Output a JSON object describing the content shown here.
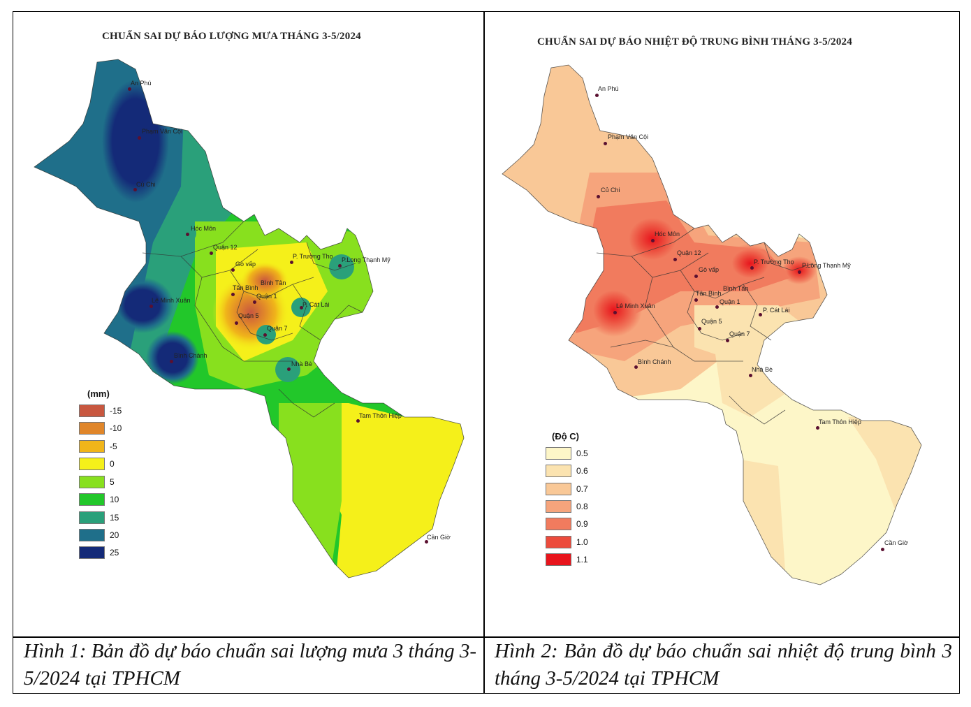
{
  "map_rain": {
    "title": "CHUẨN SAI DỰ BÁO LƯỢNG MƯA THÁNG 3-5/2024",
    "legend_title": "(mm)",
    "legend": [
      {
        "label": "-15",
        "color": "#c8573f"
      },
      {
        "label": "-10",
        "color": "#e0862a"
      },
      {
        "label": "-5",
        "color": "#f0b51a"
      },
      {
        "label": "0",
        "color": "#f5f01a"
      },
      {
        "label": "5",
        "color": "#88e01e"
      },
      {
        "label": "10",
        "color": "#22c72a"
      },
      {
        "label": "15",
        "color": "#2aa07a"
      },
      {
        "label": "20",
        "color": "#1f6f8a"
      },
      {
        "label": "25",
        "color": "#142a78"
      }
    ],
    "places": [
      "An Phú",
      "Phạm Văn Cội",
      "Củ Chi",
      "Hóc Môn",
      "Quận 12",
      "Gò vấp",
      "P. Trường Thọ",
      "P.Long Thạnh Mỹ",
      "Bình Tân",
      "Tân Bình",
      "Quận 1",
      "Lê Minh Xuân",
      "P. Cát Lái",
      "Quận 5",
      "Quận 7",
      "Bình Chánh",
      "Nhà Bè",
      "Tam Thôn Hiệp",
      "Cần Giờ"
    ]
  },
  "map_temp": {
    "title": "CHUẨN SAI DỰ BÁO NHIỆT ĐỘ TRUNG BÌNH THÁNG 3-5/2024",
    "legend_title": "(Độ C)",
    "legend": [
      {
        "label": "0.5",
        "color": "#fdf6c8"
      },
      {
        "label": "0.6",
        "color": "#fbe3b0"
      },
      {
        "label": "0.7",
        "color": "#f9c897"
      },
      {
        "label": "0.8",
        "color": "#f6a47c"
      },
      {
        "label": "0.9",
        "color": "#f17b5e"
      },
      {
        "label": "1.0",
        "color": "#ec4b3c"
      },
      {
        "label": "1.1",
        "color": "#e8141c"
      }
    ],
    "places": [
      "An Phú",
      "Phạm Văn Cội",
      "Củ Chi",
      "Hóc Môn",
      "Quận 12",
      "Gò vấp",
      "P. Trường Thọ",
      "P.Long Thạnh Mỹ",
      "Bình Tân",
      "Tân Bình",
      "Quận 1",
      "Lê Minh Xuân",
      "P. Cát Lái",
      "Quận 5",
      "Quận 7",
      "Bình Chánh",
      "Nhà Bè",
      "Tam Thôn Hiệp",
      "Cần Giờ"
    ]
  },
  "captions": {
    "left": "Hình 1: Bản đồ dự báo chuẩn sai lượng mưa 3 tháng 3-5/2024 tại TPHCM",
    "right": "Hình 2: Bản đồ dự báo chuẩn sai nhiệt độ trung bình 3 tháng 3-5/2024 tại TPHCM"
  }
}
